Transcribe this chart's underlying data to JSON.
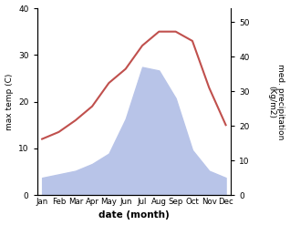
{
  "months": [
    "Jan",
    "Feb",
    "Mar",
    "Apr",
    "May",
    "Jun",
    "Jul",
    "Aug",
    "Sep",
    "Oct",
    "Nov",
    "Dec"
  ],
  "temperature": [
    12,
    13.5,
    16,
    19,
    24,
    27,
    32,
    35,
    35,
    33,
    23,
    15
  ],
  "precipitation": [
    5,
    6,
    7,
    9,
    12,
    22,
    37,
    36,
    28,
    13,
    7,
    5
  ],
  "temp_color": "#c0504d",
  "precip_fill_color": "#b8c4e8",
  "temp_ylim": [
    0,
    40
  ],
  "precip_ylim": [
    0,
    54
  ],
  "precip_yticks": [
    0,
    10,
    20,
    30,
    40,
    50
  ],
  "temp_yticks": [
    0,
    10,
    20,
    30,
    40
  ],
  "xlabel": "date (month)",
  "ylabel_left": "max temp (C)",
  "ylabel_right": "med. precipitation\n(Kg/m2)",
  "figsize": [
    3.18,
    2.47
  ],
  "dpi": 100
}
